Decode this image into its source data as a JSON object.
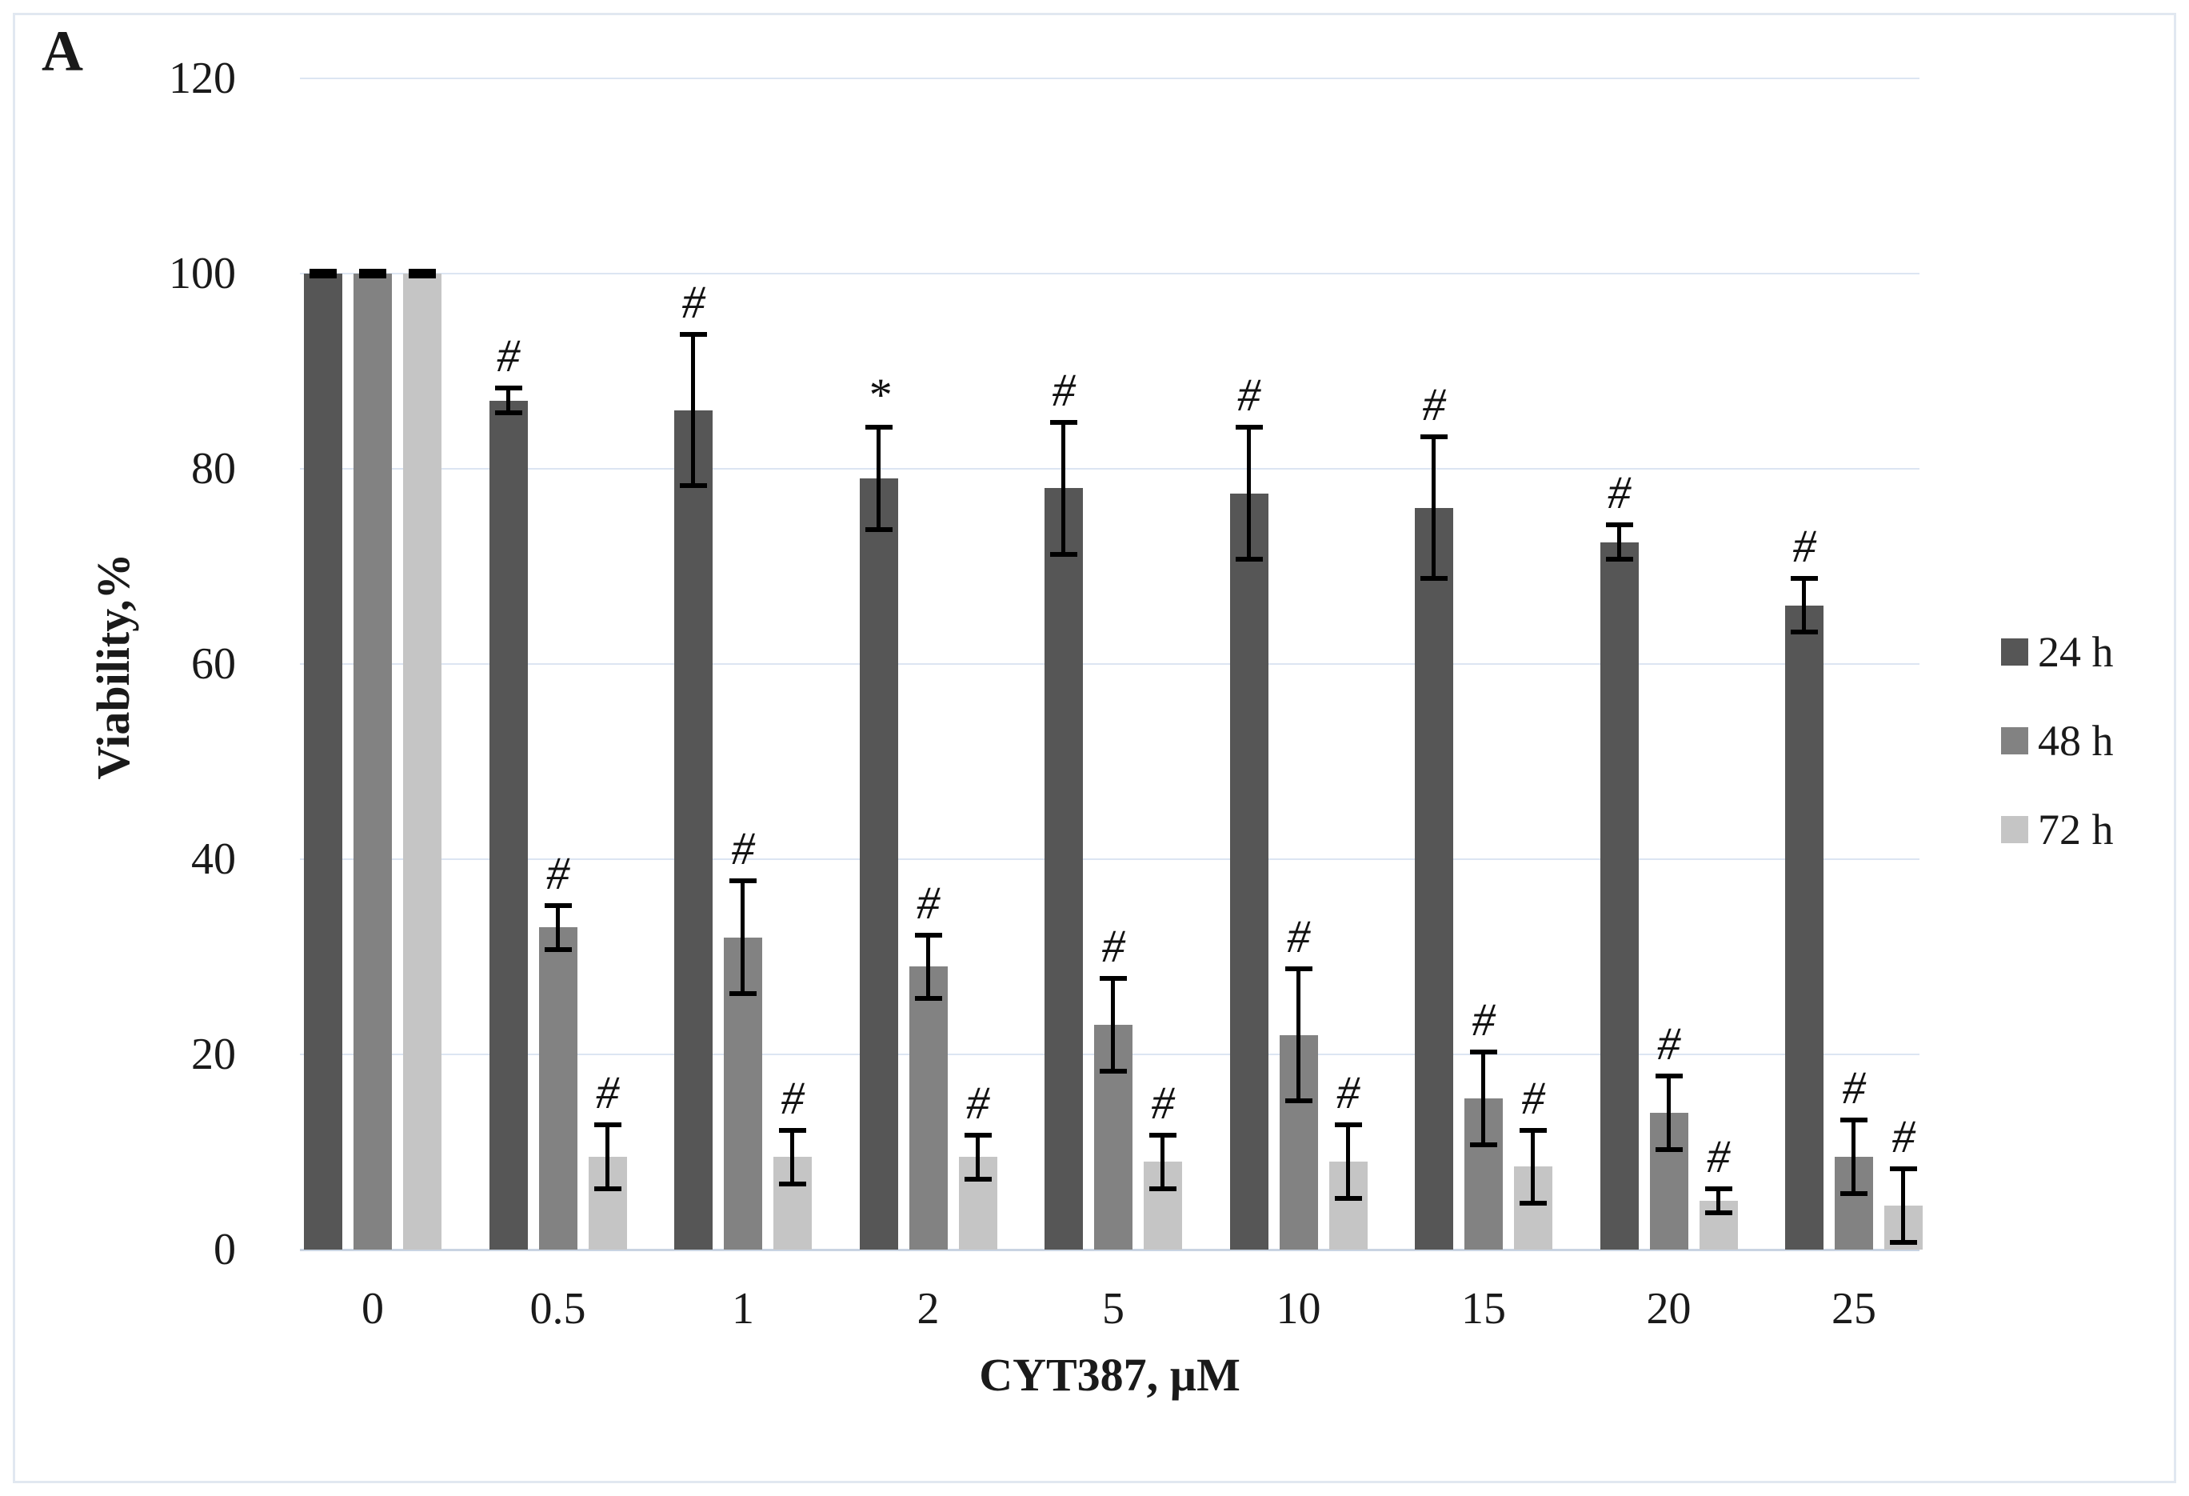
{
  "panel_label": "A",
  "axes": {
    "y_title": "Viability,%",
    "x_title": "CYT387, µM",
    "y_ticks": [
      0,
      20,
      40,
      60,
      80,
      100,
      120
    ]
  },
  "chart_data": {
    "type": "bar",
    "title": "",
    "xlabel": "CYT387, µM",
    "ylabel": "Viability,%",
    "ylim": [
      0,
      120
    ],
    "grid": true,
    "legend_position": "right-outside",
    "categories": [
      "0",
      "0.5",
      "1",
      "2",
      "5",
      "10",
      "15",
      "20",
      "25"
    ],
    "series": [
      {
        "name": "24 h",
        "color": "#565656",
        "values": [
          100,
          87,
          86,
          79,
          78,
          77.5,
          76,
          72.5,
          66
        ],
        "errors": [
          0.5,
          1.5,
          8,
          5.5,
          7,
          7,
          7.5,
          2,
          3
        ],
        "markers": [
          "",
          "#",
          "#",
          "*",
          "#",
          "#",
          "#",
          "#",
          "#"
        ]
      },
      {
        "name": "48 h",
        "color": "#828282",
        "values": [
          100,
          33,
          32,
          29,
          23,
          22,
          15.5,
          14,
          9.5
        ],
        "errors": [
          0.5,
          2.5,
          6,
          3.5,
          5,
          7,
          5,
          4,
          4
        ],
        "markers": [
          "",
          "#",
          "#",
          "#",
          "#",
          "#",
          "#",
          "#",
          "#"
        ]
      },
      {
        "name": "72 h",
        "color": "#c5c5c5",
        "values": [
          100,
          9.5,
          9.5,
          9.5,
          9,
          9,
          8.5,
          5,
          4.5
        ],
        "errors": [
          0.5,
          3.5,
          3,
          2.5,
          3,
          4,
          4,
          1.5,
          4
        ],
        "markers": [
          "",
          "#",
          "#",
          "#",
          "#",
          "#",
          "#",
          "#",
          "#"
        ]
      }
    ]
  },
  "colors": {
    "gridline": "#dce5f2",
    "axis_line": "#c9d4e2",
    "error_bar": "#000000",
    "frame_border": "#e1e8f1",
    "text": "#1a1a1a"
  }
}
